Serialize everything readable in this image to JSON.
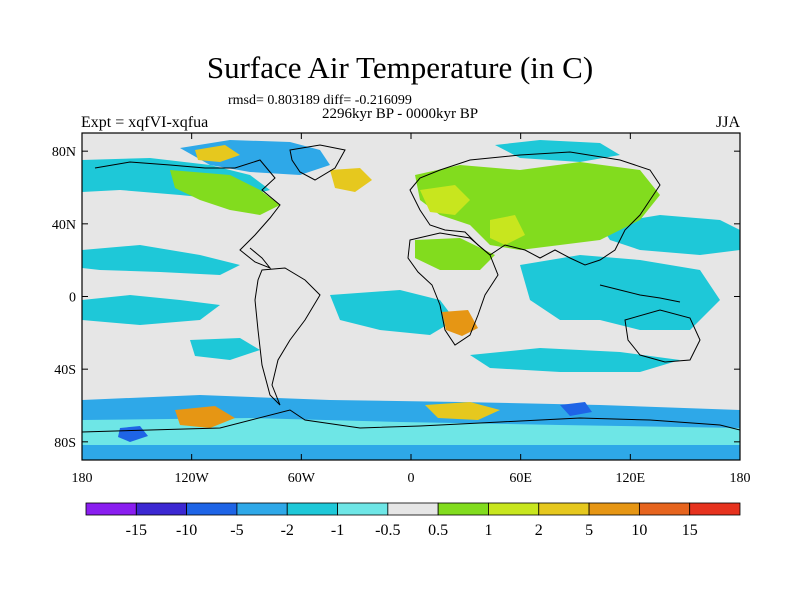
{
  "title": "Surface Air Temperature (in C)",
  "stats": "rmsd= 0.803189 diff= -0.216099",
  "period": "2296kyr BP - 0000kyr BP",
  "experiment": "Expt = xqfVI-xqfua",
  "season": "JJA",
  "axes": {
    "x_ticks": [
      "180",
      "120W",
      "60W",
      "0",
      "60E",
      "120E",
      "180"
    ],
    "y_ticks": [
      "80N",
      "40N",
      "0",
      "40S",
      "80S"
    ]
  },
  "colorbar": {
    "labels": [
      "-15",
      "-10",
      "-5",
      "-2",
      "-1",
      "-0.5",
      "0.5",
      "1",
      "2",
      "5",
      "10",
      "15"
    ],
    "colors": [
      "#8a1ef0",
      "#3c28d2",
      "#1e64e6",
      "#2ea8e8",
      "#1ec8d8",
      "#6ee6e6",
      "#e6e6e6",
      "#82dc1e",
      "#c8e61e",
      "#e6c81e",
      "#e69614",
      "#e6641e",
      "#e6321e"
    ]
  },
  "map": {
    "background_color": "#e6e6e6",
    "coastline_color": "#000000",
    "regions": [
      {
        "name": "greenland-cool",
        "color": "#2ea8e8"
      },
      {
        "name": "arctic-warm",
        "color": "#e6c81e"
      },
      {
        "name": "eurasia-warm",
        "color": "#82dc1e"
      },
      {
        "name": "north-pacific-cool",
        "color": "#1ec8d8"
      },
      {
        "name": "tropical-ocean-cool",
        "color": "#1ec8d8"
      },
      {
        "name": "africa-warm",
        "color": "#e69614"
      },
      {
        "name": "southern-ocean-mixed",
        "color": "#2ea8e8"
      }
    ]
  }
}
